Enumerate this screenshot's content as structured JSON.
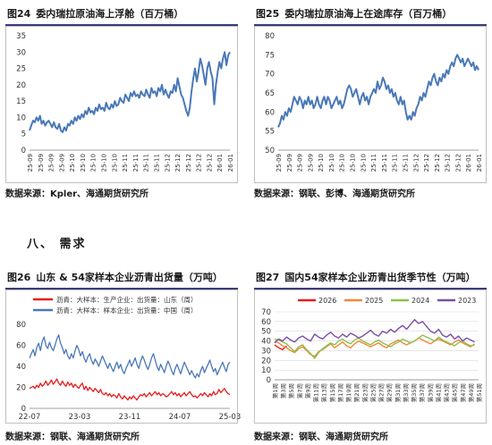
{
  "section": {
    "heading": "八、 需求"
  },
  "watermark": "数据来源",
  "panels": [
    {
      "id": "fig24",
      "fig_no": "图24",
      "title": "委内瑞拉原油海上浮舱（百万桶）",
      "source": "数据来源：Kpler、海通期货研究所"
    },
    {
      "id": "fig25",
      "fig_no": "图25",
      "title": "委内瑞拉原油海上在途库存（百万桶）",
      "source": "数据来源：钢联、彭博、海通期货研究所"
    },
    {
      "id": "fig26",
      "fig_no": "图26",
      "title": "山东 & 54家样本企业沥青出货量（万吨）",
      "source": "数据来源：钢联、海通期货研究所"
    },
    {
      "id": "fig27",
      "fig_no": "图27",
      "title": "国内54家样本企业沥青出货季节性（万吨）",
      "source": "数据来源：钢联、海通期货研究所"
    }
  ],
  "chart_data": [
    {
      "id": "fig24",
      "type": "line",
      "color": "#4a78b8",
      "ylim": [
        0,
        35
      ],
      "yticks": [
        0,
        5,
        10,
        15,
        20,
        25,
        30,
        35
      ],
      "xticks": [
        "25-09",
        "25-09",
        "25-09",
        "25-09",
        "25-10",
        "25-10",
        "25-10",
        "25-10",
        "25-10",
        "25-11",
        "25-11",
        "25-11",
        "25-11",
        "25-12",
        "25-12",
        "25-12",
        "25-12",
        "25-12",
        "26-01",
        "26-01"
      ],
      "series": [
        {
          "name": "",
          "values": [
            6,
            7.5,
            9,
            8.5,
            10,
            9,
            10.5,
            8,
            9,
            7.5,
            8.5,
            9,
            8,
            7,
            8.5,
            7,
            6.5,
            8,
            6,
            5.5,
            7,
            6,
            8,
            7.5,
            9,
            8,
            10,
            9,
            10.5,
            9.5,
            11,
            10,
            12,
            11,
            13,
            11.5,
            12,
            11,
            13,
            12,
            14,
            12.5,
            13,
            12,
            14.5,
            13,
            12.5,
            14,
            13,
            15,
            13.5,
            14,
            16,
            15,
            14.5,
            17,
            16,
            15,
            17.5,
            16.5,
            18,
            16.5,
            17,
            16,
            18,
            17,
            16.5,
            18.5,
            17,
            16,
            19,
            17.5,
            18,
            16.5,
            19,
            18,
            20,
            17,
            18.5,
            17,
            16,
            18,
            17.5,
            20,
            18,
            22,
            19.5,
            17,
            16,
            14,
            12,
            10.5,
            13,
            18,
            22,
            25,
            21,
            24,
            28,
            26,
            23,
            20,
            25,
            27,
            24,
            22,
            14,
            20,
            24,
            27,
            25,
            28,
            30,
            26,
            29,
            30
          ]
        }
      ]
    },
    {
      "id": "fig25",
      "type": "line",
      "color": "#4a78b8",
      "ylim": [
        50,
        80
      ],
      "yticks": [
        50,
        55,
        60,
        65,
        70,
        75,
        80
      ],
      "xticks": [
        "25-09",
        "25-09",
        "25-09",
        "25-09",
        "25-10",
        "25-10",
        "25-10",
        "25-10",
        "25-10",
        "25-11",
        "25-11",
        "25-11",
        "25-11",
        "25-12",
        "25-12",
        "25-12",
        "25-12",
        "25-12",
        "26-01",
        "26-01"
      ],
      "series": [
        {
          "name": "",
          "values": [
            56,
            57,
            59,
            58,
            60,
            59,
            61,
            60,
            62,
            64,
            63,
            62,
            64,
            63,
            61,
            63,
            62,
            64,
            62,
            63,
            61,
            62,
            64,
            62,
            61,
            63,
            64,
            62,
            64,
            63,
            61,
            62,
            63,
            64,
            62,
            63,
            61,
            62,
            64,
            66,
            67,
            66,
            64,
            65,
            66,
            64,
            62,
            64,
            65,
            63,
            64,
            62,
            64,
            65,
            66,
            65,
            68,
            66,
            67,
            69,
            68,
            66,
            67,
            65,
            66,
            64,
            65,
            63,
            62,
            64,
            62,
            63,
            60,
            58,
            59,
            58,
            60,
            59,
            61,
            62,
            64,
            63,
            65,
            64,
            66,
            68,
            67,
            69,
            70,
            68,
            67,
            69,
            68,
            70,
            69,
            71,
            70,
            72,
            73,
            72,
            74,
            75,
            74,
            73,
            74,
            72,
            73,
            74,
            73,
            72,
            73,
            71,
            72,
            71
          ]
        }
      ]
    },
    {
      "id": "fig26",
      "type": "line",
      "ylim": [
        0,
        80
      ],
      "yticks": [
        0,
        20,
        40,
        60,
        80
      ],
      "xticks": [
        "22-07",
        "23-03",
        "23-11",
        "24-07",
        "25-03"
      ],
      "legend": [
        "沥青：大样本：生产企业：出货量：山东（周）",
        "沥青：大样本：样本企业：出货量：中国（周）"
      ],
      "series": [
        {
          "name": "沥青：大样本：生产企业：出货量：山东（周）",
          "color": "#e81c1c",
          "values": [
            19,
            20,
            21,
            19,
            22,
            20,
            24,
            21,
            23,
            26,
            22,
            24,
            27,
            23,
            25,
            28,
            24,
            22,
            26,
            23,
            21,
            25,
            22,
            24,
            20,
            23,
            21,
            19,
            22,
            24,
            18,
            21,
            17,
            20,
            18,
            16,
            19,
            17,
            15,
            18,
            14,
            13,
            15,
            12,
            14,
            11,
            13,
            12,
            10,
            14,
            11,
            9,
            12,
            10,
            8,
            11,
            9,
            12,
            10,
            8,
            11,
            13,
            12,
            14,
            11,
            13,
            15,
            12,
            14,
            16,
            13,
            15,
            12,
            14,
            13,
            11,
            12,
            14,
            16,
            13,
            15,
            12,
            14,
            11,
            13,
            15,
            12,
            14,
            16,
            13,
            11,
            12,
            10,
            12,
            14,
            12,
            15,
            13,
            11,
            14,
            12,
            16,
            13,
            14,
            18,
            15,
            17,
            19,
            16,
            14,
            13
          ]
        },
        {
          "name": "沥青：大样本：样本企业：出货量：中国（周）",
          "color": "#4a78b8",
          "values": [
            48,
            52,
            56,
            50,
            58,
            62,
            55,
            64,
            68,
            60,
            57,
            63,
            58,
            55,
            60,
            66,
            70,
            62,
            58,
            52,
            56,
            50,
            47,
            52,
            48,
            55,
            60,
            56,
            50,
            54,
            48,
            44,
            49,
            52,
            46,
            42,
            47,
            44,
            40,
            45,
            50,
            46,
            42,
            38,
            43,
            39,
            35,
            40,
            44,
            38,
            42,
            36,
            33,
            38,
            42,
            46,
            40,
            44,
            48,
            42,
            38,
            45,
            50,
            46,
            41,
            37,
            42,
            48,
            52,
            46,
            40,
            36,
            42,
            38,
            34,
            40,
            45,
            41,
            36,
            32,
            38,
            42,
            37,
            33,
            39,
            44,
            40,
            36,
            32,
            36,
            32,
            29,
            33,
            30,
            36,
            40,
            34,
            38,
            42,
            46,
            40,
            35,
            38,
            32,
            36,
            40,
            44,
            39,
            35,
            42,
            44
          ]
        }
      ]
    },
    {
      "id": "fig27",
      "type": "line",
      "ylim": [
        0,
        70
      ],
      "yticks": [
        0,
        10,
        20,
        30,
        40,
        50,
        60,
        70
      ],
      "grid": true,
      "xticks": [
        "第1周",
        "第3周",
        "第5周",
        "第7周",
        "第9周",
        "第11周",
        "第13周",
        "第15周",
        "第17周",
        "第19周",
        "第21周",
        "第23周",
        "第25周",
        "第27周",
        "第29周",
        "第31周",
        "第33周",
        "第35周",
        "第37周",
        "第39周",
        "第41周",
        "第43周",
        "第45周",
        "第47周",
        "第49周",
        "第51周"
      ],
      "series": [
        {
          "name": "2026",
          "color": "#e81c1c",
          "values": [
            36,
            33,
            31,
            35
          ]
        },
        {
          "name": "2025",
          "color": "#f0883a",
          "values": [
            40,
            38,
            35,
            33,
            30,
            28,
            32,
            34,
            30,
            26,
            24,
            29,
            31,
            34,
            37,
            33,
            36,
            39,
            35,
            33,
            37,
            40,
            38,
            36,
            34,
            36,
            38,
            35,
            33,
            37,
            39,
            41,
            38,
            36,
            38,
            40,
            43,
            41,
            39,
            37,
            40,
            42,
            40,
            38,
            36,
            39,
            41,
            38,
            36,
            34,
            37
          ]
        },
        {
          "name": "2024",
          "color": "#8fbf4a",
          "values": [
            42,
            41,
            39,
            37,
            33,
            29,
            34,
            36,
            31,
            27,
            22,
            28,
            32,
            35,
            38,
            36,
            40,
            42,
            39,
            37,
            41,
            43,
            40,
            38,
            36,
            39,
            41,
            38,
            36,
            34,
            37,
            39,
            42,
            40,
            38,
            40,
            43,
            46,
            44,
            42,
            40,
            44,
            41,
            39,
            37,
            35,
            38,
            40,
            37,
            35,
            36
          ]
        },
        {
          "name": "2023",
          "color": "#7b4fa8",
          "values": [
            38,
            42,
            40,
            44,
            41,
            39,
            43,
            45,
            42,
            40,
            47,
            44,
            42,
            46,
            49,
            45,
            43,
            47,
            44,
            48,
            46,
            43,
            45,
            48,
            51,
            47,
            45,
            50,
            48,
            52,
            49,
            53,
            56,
            52,
            57,
            62,
            58,
            60,
            55,
            50,
            48,
            52,
            46,
            44,
            47,
            42,
            45,
            40,
            43,
            41,
            39
          ]
        }
      ]
    }
  ]
}
